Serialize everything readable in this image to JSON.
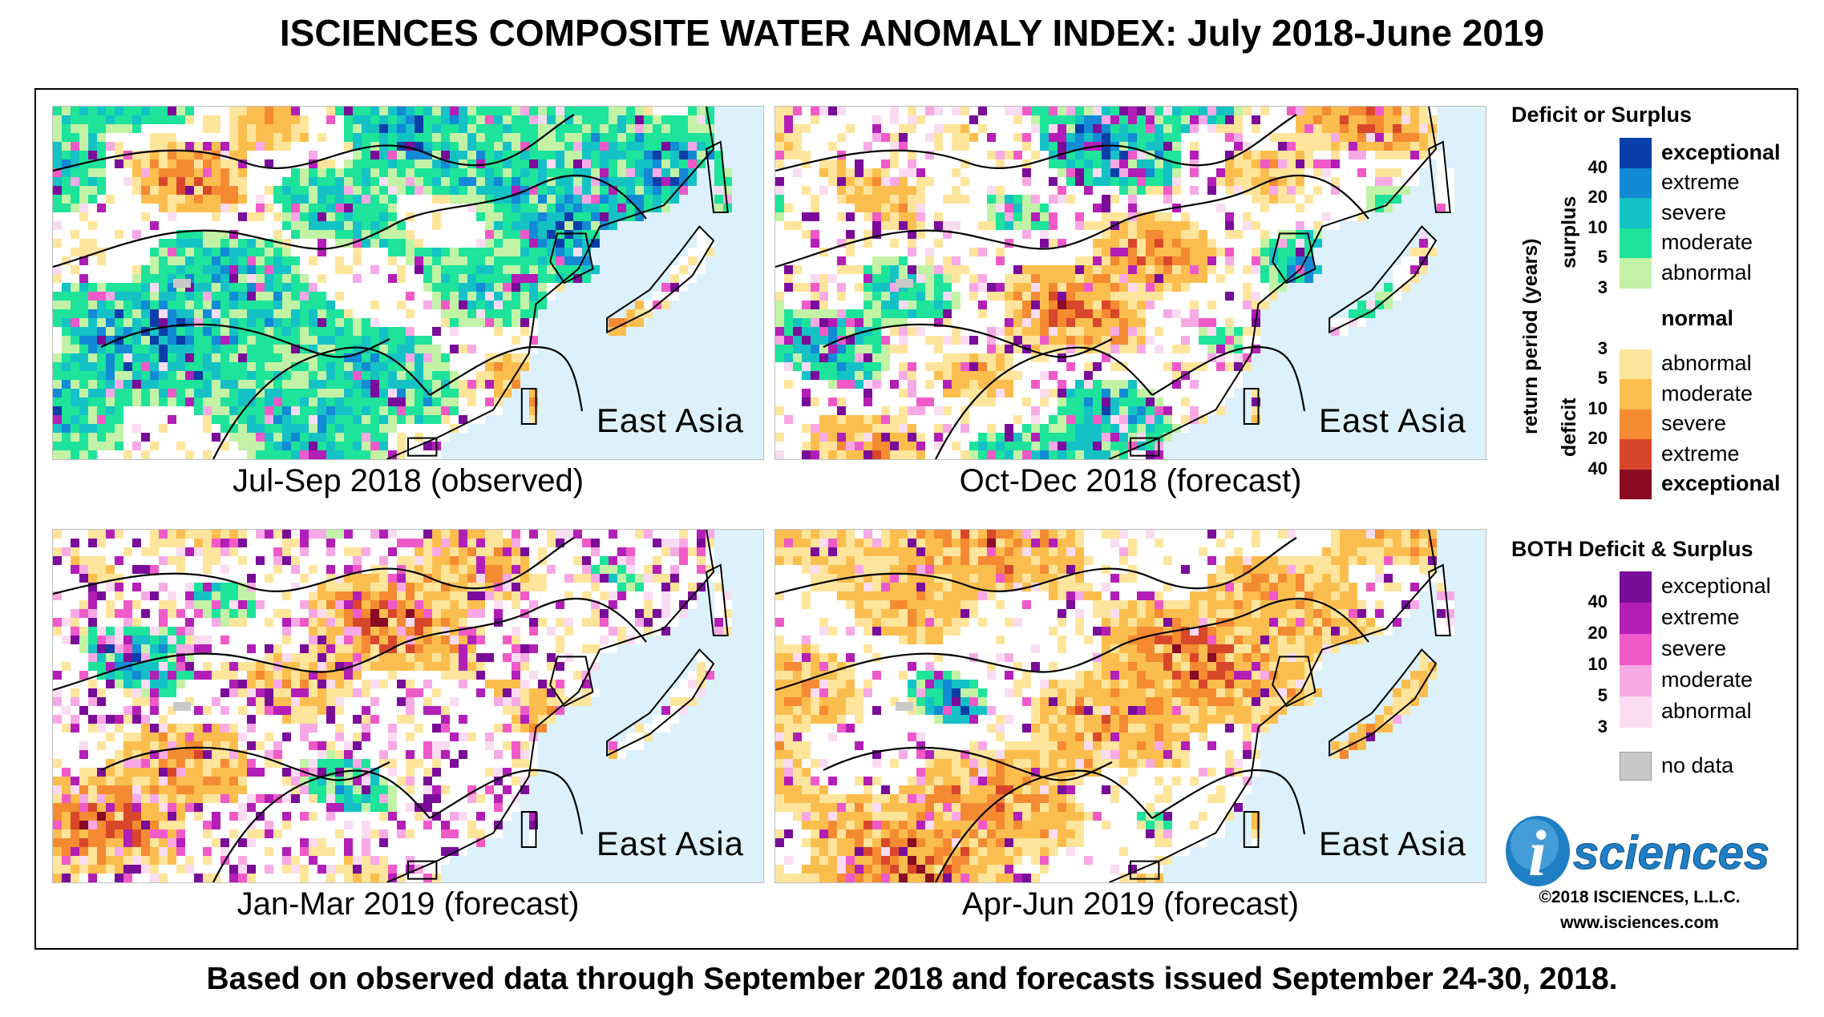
{
  "title": "ISCIENCES COMPOSITE WATER ANOMALY INDEX: July 2018-June 2019",
  "footer": "Based on observed data through September 2018 and forecasts issued September 24-30, 2018.",
  "panels": [
    {
      "region": "East Asia",
      "caption": "Jul-Sep 2018 (observed)",
      "profile": "surplus"
    },
    {
      "region": "East Asia",
      "caption": "Oct-Dec 2018 (forecast)",
      "profile": "mixed"
    },
    {
      "region": "East Asia",
      "caption": "Jan-Mar 2019 (forecast)",
      "profile": "both"
    },
    {
      "region": "East Asia",
      "caption": "Apr-Jun 2019 (forecast)",
      "profile": "deficit"
    }
  ],
  "legend": {
    "deficit_surplus": {
      "title": "Deficit or Surplus",
      "axis_label": "return period (years)",
      "surplus_label": "surplus",
      "deficit_label": "deficit",
      "surplus": [
        {
          "label": "exceptional",
          "color": "#0a3ea8",
          "bold": true
        },
        {
          "label": "extreme",
          "color": "#128ad6",
          "bold": false
        },
        {
          "label": "severe",
          "color": "#14c2c6",
          "bold": false
        },
        {
          "label": "moderate",
          "color": "#1ee39a",
          "bold": false
        },
        {
          "label": "abnormal",
          "color": "#c2f2a6",
          "bold": false
        }
      ],
      "normal": {
        "label": "normal",
        "color": "#ffffff"
      },
      "deficit": [
        {
          "label": "abnormal",
          "color": "#ffe59c",
          "bold": false
        },
        {
          "label": "moderate",
          "color": "#fbbe4e",
          "bold": false
        },
        {
          "label": "severe",
          "color": "#f48a32",
          "bold": false
        },
        {
          "label": "extreme",
          "color": "#d9472a",
          "bold": false
        },
        {
          "label": "exceptional",
          "color": "#8a0b22",
          "bold": true
        }
      ],
      "surplus_ticks": [
        "40",
        "20",
        "10",
        "5",
        "3"
      ],
      "deficit_ticks": [
        "3",
        "5",
        "10",
        "20",
        "40"
      ]
    },
    "both": {
      "title": "BOTH Deficit & Surplus",
      "items": [
        {
          "label": "exceptional",
          "color": "#7a0c9a"
        },
        {
          "label": "extreme",
          "color": "#b21eb6"
        },
        {
          "label": "severe",
          "color": "#f05ac8"
        },
        {
          "label": "moderate",
          "color": "#f7a9e6"
        },
        {
          "label": "abnormal",
          "color": "#fadcf2"
        }
      ],
      "ticks": [
        "40",
        "20",
        "10",
        "5",
        "3"
      ]
    },
    "no_data": {
      "label": "no data",
      "color": "#c8c8c8"
    }
  },
  "logo": {
    "letter": "i",
    "text": "sciences",
    "icon": "isciences-logo-icon"
  },
  "copyright": "©2018 ISCIENCES, L.L.C.",
  "website": "www.isciences.com"
}
